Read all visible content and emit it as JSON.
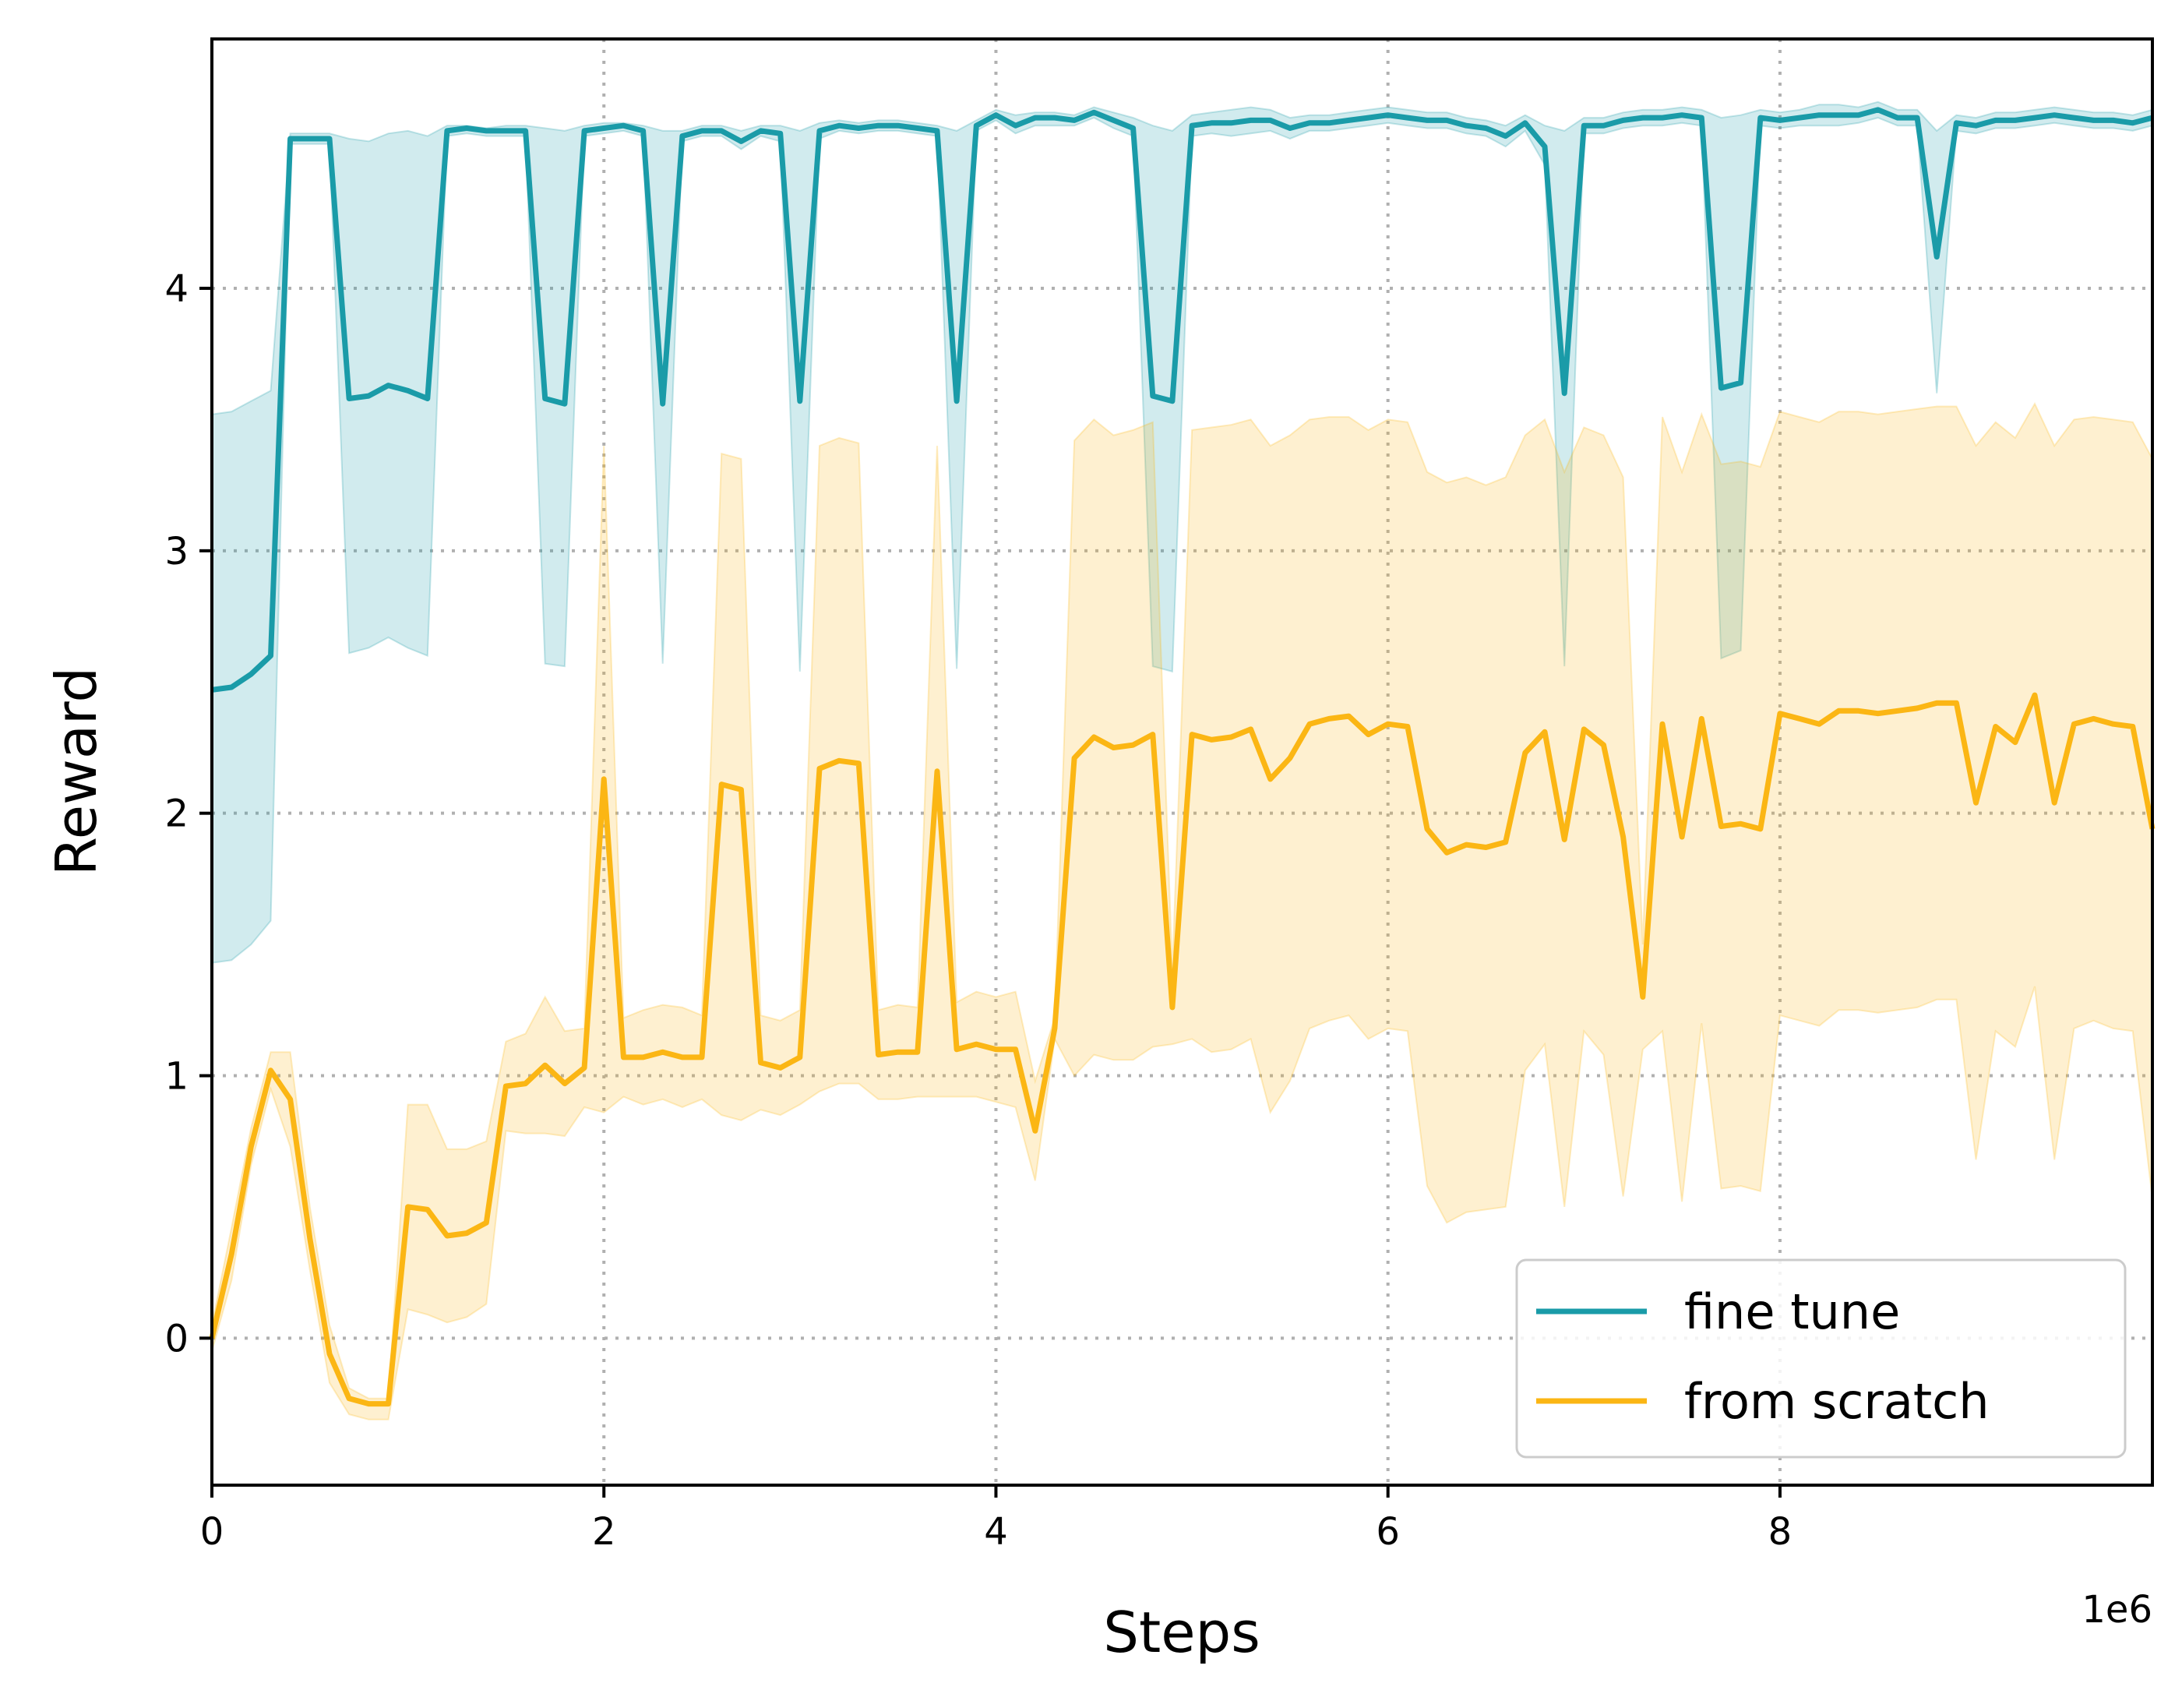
{
  "chart_data": {
    "type": "line",
    "xlabel": "Steps",
    "ylabel": "Reward",
    "x_offset_label": "1e6",
    "xlim": [
      0,
      9.9
    ],
    "ylim": [
      -0.56,
      4.95
    ],
    "xticks": [
      0,
      2,
      4,
      6,
      8
    ],
    "xtick_labels": [
      "0",
      "2",
      "4",
      "6",
      "8"
    ],
    "yticks": [
      0,
      1,
      2,
      3,
      4
    ],
    "ytick_labels": [
      "0",
      "1",
      "2",
      "3",
      "4"
    ],
    "grid": true,
    "legend_position": "lower-right",
    "x": [
      0,
      0.1,
      0.2,
      0.3,
      0.4,
      0.5,
      0.6,
      0.7,
      0.8,
      0.9,
      1.0,
      1.1,
      1.2,
      1.3,
      1.4,
      1.5,
      1.6,
      1.7,
      1.8,
      1.9,
      2.0,
      2.1,
      2.2,
      2.3,
      2.4,
      2.5,
      2.6,
      2.7,
      2.8,
      2.9,
      3.0,
      3.1,
      3.2,
      3.3,
      3.4,
      3.5,
      3.6,
      3.7,
      3.8,
      3.9,
      4.0,
      4.1,
      4.2,
      4.3,
      4.4,
      4.5,
      4.6,
      4.7,
      4.8,
      4.9,
      5.0,
      5.1,
      5.2,
      5.3,
      5.4,
      5.5,
      5.6,
      5.7,
      5.8,
      5.9,
      6.0,
      6.1,
      6.2,
      6.3,
      6.4,
      6.5,
      6.6,
      6.7,
      6.8,
      6.9,
      7.0,
      7.1,
      7.2,
      7.3,
      7.4,
      7.5,
      7.6,
      7.7,
      7.8,
      7.9,
      8.0,
      8.1,
      8.2,
      8.3,
      8.4,
      8.5,
      8.6,
      8.7,
      8.8,
      8.9,
      9.0,
      9.1,
      9.2,
      9.3,
      9.4,
      9.5,
      9.6,
      9.7,
      9.8,
      9.9
    ],
    "series": [
      {
        "name": "fine tune",
        "color": "#1a9ba8",
        "band_color": "#1a9ba8",
        "mean": [
          2.47,
          2.48,
          2.53,
          2.6,
          4.57,
          4.57,
          4.57,
          3.58,
          3.59,
          3.63,
          3.61,
          3.58,
          4.6,
          4.61,
          4.6,
          4.6,
          4.6,
          3.58,
          3.56,
          4.6,
          4.61,
          4.62,
          4.6,
          3.56,
          4.58,
          4.6,
          4.6,
          4.56,
          4.6,
          4.59,
          3.57,
          4.6,
          4.62,
          4.61,
          4.62,
          4.62,
          4.61,
          4.6,
          3.57,
          4.62,
          4.66,
          4.62,
          4.65,
          4.65,
          4.64,
          4.67,
          4.64,
          4.61,
          3.59,
          3.57,
          4.62,
          4.63,
          4.63,
          4.64,
          4.64,
          4.61,
          4.63,
          4.63,
          4.64,
          4.65,
          4.66,
          4.65,
          4.64,
          4.64,
          4.62,
          4.61,
          4.58,
          4.63,
          4.54,
          3.6,
          4.62,
          4.62,
          4.64,
          4.65,
          4.65,
          4.66,
          4.65,
          3.62,
          3.64,
          4.65,
          4.64,
          4.65,
          4.66,
          4.66,
          4.66,
          4.68,
          4.65,
          4.65,
          4.12,
          4.63,
          4.62,
          4.64,
          4.64,
          4.65,
          4.66,
          4.65,
          4.64,
          4.64,
          4.63,
          4.65
        ],
        "upper": [
          3.52,
          3.53,
          3.57,
          3.61,
          4.59,
          4.59,
          4.59,
          4.57,
          4.56,
          4.59,
          4.6,
          4.58,
          4.62,
          4.62,
          4.61,
          4.62,
          4.62,
          4.61,
          4.6,
          4.62,
          4.63,
          4.63,
          4.62,
          4.6,
          4.6,
          4.62,
          4.62,
          4.6,
          4.62,
          4.62,
          4.6,
          4.63,
          4.64,
          4.63,
          4.64,
          4.64,
          4.63,
          4.62,
          4.6,
          4.64,
          4.68,
          4.66,
          4.67,
          4.67,
          4.66,
          4.69,
          4.67,
          4.65,
          4.62,
          4.6,
          4.66,
          4.67,
          4.68,
          4.69,
          4.68,
          4.65,
          4.66,
          4.66,
          4.67,
          4.68,
          4.69,
          4.68,
          4.67,
          4.67,
          4.65,
          4.64,
          4.62,
          4.66,
          4.62,
          4.6,
          4.65,
          4.65,
          4.67,
          4.68,
          4.68,
          4.69,
          4.68,
          4.65,
          4.66,
          4.68,
          4.67,
          4.68,
          4.7,
          4.7,
          4.69,
          4.71,
          4.68,
          4.68,
          4.6,
          4.66,
          4.65,
          4.67,
          4.67,
          4.68,
          4.69,
          4.68,
          4.67,
          4.67,
          4.66,
          4.68
        ],
        "lower": [
          1.43,
          1.44,
          1.5,
          1.59,
          4.55,
          4.55,
          4.55,
          2.61,
          2.63,
          2.67,
          2.63,
          2.6,
          4.58,
          4.59,
          4.58,
          4.58,
          4.58,
          2.57,
          2.56,
          4.58,
          4.59,
          4.6,
          4.58,
          2.57,
          4.56,
          4.58,
          4.58,
          4.53,
          4.58,
          4.56,
          2.54,
          4.57,
          4.6,
          4.59,
          4.6,
          4.6,
          4.59,
          4.58,
          2.55,
          4.6,
          4.64,
          4.59,
          4.62,
          4.62,
          4.62,
          4.65,
          4.61,
          4.58,
          2.56,
          2.54,
          4.58,
          4.59,
          4.58,
          4.59,
          4.6,
          4.57,
          4.6,
          4.6,
          4.61,
          4.62,
          4.63,
          4.62,
          4.61,
          4.61,
          4.59,
          4.58,
          4.54,
          4.6,
          4.47,
          2.56,
          4.59,
          4.59,
          4.61,
          4.62,
          4.62,
          4.63,
          4.62,
          2.59,
          2.62,
          4.62,
          4.61,
          4.62,
          4.62,
          4.62,
          4.63,
          4.65,
          4.62,
          4.62,
          3.6,
          4.6,
          4.59,
          4.61,
          4.61,
          4.62,
          4.63,
          4.62,
          4.61,
          4.61,
          4.6,
          4.62
        ]
      },
      {
        "name": "from scratch",
        "color": "#fbb614",
        "band_color": "#fbb614",
        "mean": [
          0.0,
          0.32,
          0.73,
          1.02,
          0.91,
          0.38,
          -0.06,
          -0.23,
          -0.25,
          -0.25,
          0.5,
          0.49,
          0.39,
          0.4,
          0.44,
          0.96,
          0.97,
          1.04,
          0.97,
          1.03,
          2.13,
          1.07,
          1.07,
          1.09,
          1.07,
          1.07,
          2.11,
          2.09,
          1.05,
          1.03,
          1.07,
          2.17,
          2.2,
          2.19,
          1.08,
          1.09,
          1.09,
          2.16,
          1.1,
          1.12,
          1.1,
          1.1,
          0.79,
          1.18,
          2.21,
          2.29,
          2.25,
          2.26,
          2.3,
          1.26,
          2.3,
          2.28,
          2.29,
          2.32,
          2.13,
          2.21,
          2.34,
          2.36,
          2.37,
          2.3,
          2.34,
          2.33,
          1.94,
          1.85,
          1.88,
          1.87,
          1.89,
          2.23,
          2.31,
          1.9,
          2.32,
          2.26,
          1.91,
          1.3,
          2.34,
          1.91,
          2.36,
          1.95,
          1.96,
          1.94,
          2.38,
          2.36,
          2.34,
          2.39,
          2.39,
          2.38,
          2.39,
          2.4,
          2.42,
          2.42,
          2.04,
          2.33,
          2.27,
          2.45,
          2.04,
          2.34,
          2.36,
          2.34,
          2.33,
          1.94
        ],
        "upper": [
          0.05,
          0.42,
          0.8,
          1.09,
          1.09,
          0.5,
          0.05,
          -0.19,
          -0.23,
          -0.23,
          0.89,
          0.89,
          0.72,
          0.72,
          0.75,
          1.13,
          1.16,
          1.3,
          1.17,
          1.18,
          3.4,
          1.22,
          1.25,
          1.27,
          1.26,
          1.23,
          3.37,
          3.35,
          1.23,
          1.21,
          1.25,
          3.4,
          3.43,
          3.41,
          1.25,
          1.27,
          1.26,
          3.4,
          1.28,
          1.32,
          1.3,
          1.32,
          0.98,
          1.22,
          3.42,
          3.5,
          3.44,
          3.46,
          3.49,
          1.4,
          3.46,
          3.47,
          3.48,
          3.5,
          3.4,
          3.44,
          3.5,
          3.51,
          3.51,
          3.46,
          3.5,
          3.49,
          3.3,
          3.26,
          3.28,
          3.25,
          3.28,
          3.44,
          3.5,
          3.3,
          3.47,
          3.44,
          3.28,
          1.5,
          3.51,
          3.3,
          3.52,
          3.33,
          3.34,
          3.32,
          3.53,
          3.51,
          3.49,
          3.53,
          3.53,
          3.52,
          3.53,
          3.54,
          3.55,
          3.55,
          3.4,
          3.49,
          3.43,
          3.56,
          3.4,
          3.5,
          3.51,
          3.5,
          3.49,
          3.35
        ],
        "lower": [
          -0.05,
          0.22,
          0.66,
          0.95,
          0.73,
          0.26,
          -0.17,
          -0.29,
          -0.31,
          -0.31,
          0.11,
          0.09,
          0.06,
          0.08,
          0.13,
          0.79,
          0.78,
          0.78,
          0.77,
          0.88,
          0.86,
          0.92,
          0.89,
          0.91,
          0.88,
          0.91,
          0.85,
          0.83,
          0.87,
          0.85,
          0.89,
          0.94,
          0.97,
          0.97,
          0.91,
          0.91,
          0.92,
          0.92,
          0.92,
          0.92,
          0.9,
          0.88,
          0.6,
          1.14,
          1.0,
          1.08,
          1.06,
          1.06,
          1.11,
          1.12,
          1.14,
          1.09,
          1.1,
          1.14,
          0.86,
          0.98,
          1.18,
          1.21,
          1.23,
          1.14,
          1.18,
          1.17,
          0.58,
          0.44,
          0.48,
          0.49,
          0.5,
          1.02,
          1.12,
          0.5,
          1.17,
          1.08,
          0.54,
          1.1,
          1.17,
          0.52,
          1.2,
          0.57,
          0.58,
          0.56,
          1.23,
          1.21,
          1.19,
          1.25,
          1.25,
          1.24,
          1.25,
          1.26,
          1.29,
          1.29,
          0.68,
          1.17,
          1.11,
          1.34,
          0.68,
          1.18,
          1.21,
          1.18,
          1.17,
          0.53
        ]
      }
    ]
  }
}
